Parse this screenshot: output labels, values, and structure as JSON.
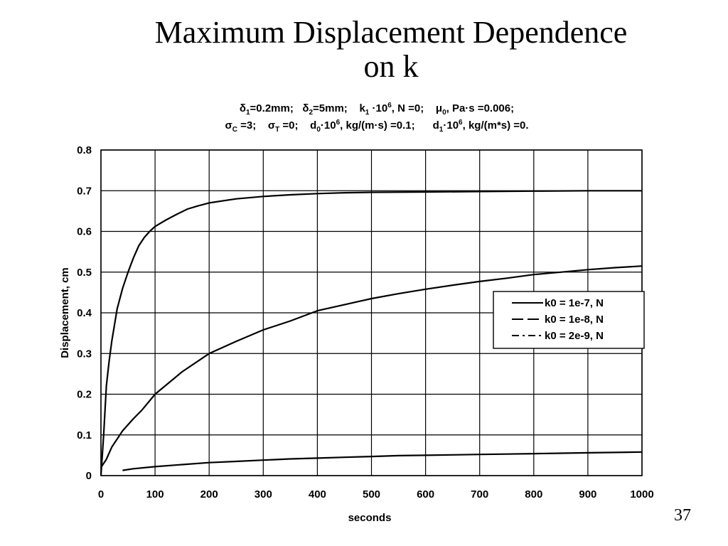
{
  "slide": {
    "title_line1": "Maximum Displacement Dependence",
    "title_line2": "on k",
    "page_number": "37"
  },
  "params": {
    "line1": [
      {
        "t": "δ"
      },
      {
        "sub": "1"
      },
      {
        "t": "=0.2mm;   δ"
      },
      {
        "sub": "2"
      },
      {
        "t": "=5mm;    k"
      },
      {
        "sub": "1"
      },
      {
        "t": " ·10"
      },
      {
        "sup": "6"
      },
      {
        "t": ", N =0;    μ"
      },
      {
        "sub": "0"
      },
      {
        "t": ", Pa·s =0.006;"
      }
    ],
    "line2": [
      {
        "t": "σ"
      },
      {
        "sub": "C"
      },
      {
        "t": " =3;    σ"
      },
      {
        "sub": "T"
      },
      {
        "t": " =0;    d"
      },
      {
        "sub": "0"
      },
      {
        "t": "·10"
      },
      {
        "sup": "6"
      },
      {
        "t": ", kg/(m·s) =0.1;      d"
      },
      {
        "sub": "1"
      },
      {
        "t": "·10"
      },
      {
        "sup": "6"
      },
      {
        "t": ", kg/(m*s) =0."
      }
    ]
  },
  "chart_data": {
    "type": "line",
    "xlabel": "seconds",
    "ylabel": "Displacement, cm",
    "xlim": [
      0,
      1000
    ],
    "ylim": [
      0,
      0.8
    ],
    "xticks": [
      0,
      100,
      200,
      300,
      400,
      500,
      600,
      700,
      800,
      900,
      1000
    ],
    "yticks": [
      0,
      0.1,
      0.2,
      0.3,
      0.4,
      0.5,
      0.6,
      0.7,
      0.8
    ],
    "grid": true,
    "legend_position": "right",
    "series": [
      {
        "name": "k0 = 1e-7, N",
        "dash": "solid",
        "points": [
          [
            0,
            0
          ],
          [
            5,
            0.1
          ],
          [
            10,
            0.22
          ],
          [
            15,
            0.28
          ],
          [
            20,
            0.33
          ],
          [
            30,
            0.41
          ],
          [
            40,
            0.46
          ],
          [
            50,
            0.5
          ],
          [
            60,
            0.535
          ],
          [
            70,
            0.565
          ],
          [
            80,
            0.585
          ],
          [
            90,
            0.6
          ],
          [
            100,
            0.612
          ],
          [
            120,
            0.628
          ],
          [
            140,
            0.642
          ],
          [
            160,
            0.655
          ],
          [
            180,
            0.663
          ],
          [
            200,
            0.67
          ],
          [
            250,
            0.68
          ],
          [
            300,
            0.686
          ],
          [
            350,
            0.69
          ],
          [
            400,
            0.693
          ],
          [
            450,
            0.695
          ],
          [
            500,
            0.696
          ],
          [
            600,
            0.697
          ],
          [
            700,
            0.698
          ],
          [
            800,
            0.699
          ],
          [
            900,
            0.7
          ],
          [
            1000,
            0.7
          ]
        ]
      },
      {
        "name": "k0 = 1e-8, N",
        "dash": "long-dash",
        "points": [
          [
            0,
            0.02
          ],
          [
            10,
            0.04
          ],
          [
            20,
            0.07
          ],
          [
            30,
            0.09
          ],
          [
            40,
            0.11
          ],
          [
            50,
            0.125
          ],
          [
            60,
            0.14
          ],
          [
            75,
            0.16
          ],
          [
            100,
            0.2
          ],
          [
            150,
            0.255
          ],
          [
            200,
            0.3
          ],
          [
            250,
            0.33
          ],
          [
            300,
            0.358
          ],
          [
            350,
            0.38
          ],
          [
            400,
            0.405
          ],
          [
            450,
            0.42
          ],
          [
            500,
            0.435
          ],
          [
            550,
            0.447
          ],
          [
            600,
            0.458
          ],
          [
            650,
            0.468
          ],
          [
            700,
            0.477
          ],
          [
            750,
            0.485
          ],
          [
            800,
            0.494
          ],
          [
            850,
            0.5
          ],
          [
            900,
            0.506
          ],
          [
            950,
            0.511
          ],
          [
            1000,
            0.515
          ]
        ]
      },
      {
        "name": "k0 = 2e-9, N",
        "dash": "dash-dot",
        "points": [
          [
            40,
            0.013
          ],
          [
            60,
            0.017
          ],
          [
            100,
            0.022
          ],
          [
            150,
            0.027
          ],
          [
            200,
            0.032
          ],
          [
            250,
            0.035
          ],
          [
            300,
            0.038
          ],
          [
            350,
            0.041
          ],
          [
            400,
            0.043
          ],
          [
            450,
            0.045
          ],
          [
            500,
            0.047
          ],
          [
            550,
            0.049
          ],
          [
            600,
            0.05
          ],
          [
            650,
            0.051
          ],
          [
            700,
            0.052
          ],
          [
            750,
            0.053
          ],
          [
            800,
            0.054
          ],
          [
            850,
            0.055
          ],
          [
            900,
            0.056
          ],
          [
            950,
            0.057
          ],
          [
            1000,
            0.058
          ]
        ]
      }
    ]
  }
}
